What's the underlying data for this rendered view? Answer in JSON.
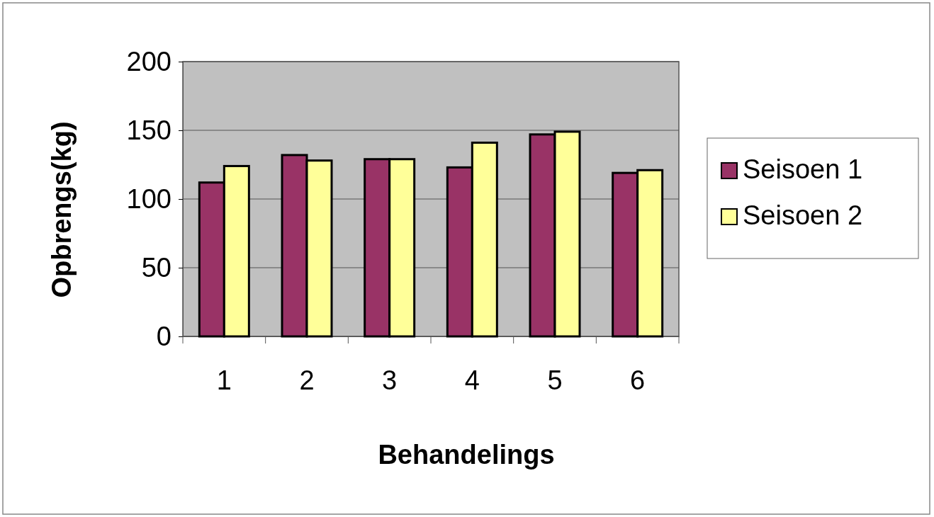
{
  "chart_data": {
    "type": "bar",
    "xlabel": "Behandelings",
    "ylabel": "Opbrengs(kg)",
    "categories": [
      "1",
      "2",
      "3",
      "4",
      "5",
      "6"
    ],
    "series": [
      {
        "name": "Seisoen 1",
        "color": "#993366",
        "values": [
          112,
          132,
          129,
          123,
          147,
          119
        ]
      },
      {
        "name": "Seisoen 2",
        "color": "#ffff99",
        "values": [
          124,
          128,
          129,
          141,
          149,
          121
        ]
      }
    ],
    "ylim": [
      0,
      200
    ],
    "yticks": [
      0,
      50,
      100,
      150,
      200
    ],
    "grid": "y",
    "legend": "right"
  }
}
